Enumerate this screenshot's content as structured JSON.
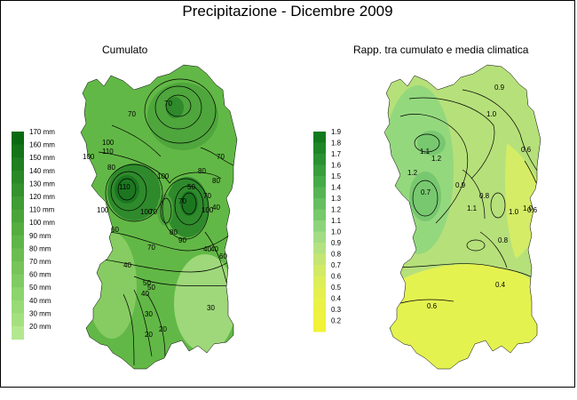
{
  "title": "Precipitazione - Dicembre 2009",
  "panels": [
    {
      "subtitle": "Cumulato",
      "legend": {
        "labels": [
          "170 mm",
          "160 mm",
          "150 mm",
          "140 mm",
          "130 mm",
          "120 mm",
          "110 mm",
          "100 mm",
          "90 mm",
          "80 mm",
          "70 mm",
          "60 mm",
          "50 mm",
          "40 mm",
          "30 mm",
          "20 mm"
        ],
        "colors": [
          "#0a6a12",
          "#157418",
          "#1f7e20",
          "#2a8826",
          "#35922e",
          "#409c34",
          "#4aa43a",
          "#55ad40",
          "#60b548",
          "#6bbd52",
          "#76c45a",
          "#80cc64",
          "#8cd46c",
          "#98da76",
          "#a4e080",
          "#b4e890"
        ]
      },
      "contour_labels": [
        "70",
        "70",
        "100",
        "110",
        "100",
        "80",
        "110",
        "70",
        "70",
        "80",
        "80",
        "100",
        "70",
        "100",
        "50",
        "100",
        "100",
        "80",
        "90",
        "70",
        "70",
        "40",
        "60",
        "50",
        "40",
        "40",
        "30",
        "20",
        "60",
        "30",
        "50",
        "20",
        "40",
        "40"
      ],
      "map_colors": {
        "base": "#62b846",
        "mid": "#4ea63c",
        "dark": "#2f8a2c",
        "darkest": "#1c7620",
        "light": "#86cc62",
        "lighter": "#9ed87a"
      }
    },
    {
      "subtitle": "Rapp. tra cumulato e media climatica",
      "legend": {
        "labels": [
          "1.9",
          "1.8",
          "1.7",
          "1.6",
          "1.5",
          "1.4",
          "1.3",
          "1.2",
          "1.1",
          "1.0",
          "0.9",
          "0.8",
          "0.7",
          "0.6",
          "0.5",
          "0.4",
          "0.3",
          "0.2"
        ],
        "colors": [
          "#127a1c",
          "#1e8626",
          "#2a9232",
          "#389e3c",
          "#46aa48",
          "#56b454",
          "#66be60",
          "#78c86c",
          "#8cd47c",
          "#a2dc84",
          "#b4e280",
          "#c4e674",
          "#d2ea66",
          "#dcee5a",
          "#e4f050",
          "#eaf248",
          "#eef240",
          "#f2f236"
        ]
      },
      "contour_labels": [
        "0.9",
        "1.0",
        "1.1",
        "1.2",
        "1.2",
        "0.9",
        "0.8",
        "1.1",
        "0.8",
        "1.0",
        "1.0",
        "0.7",
        "0.6",
        "0.6",
        "0.4",
        "0.6"
      ],
      "map_colors": {
        "base": "#b6e07a",
        "west": "#94d87e",
        "deep": "#78c870",
        "south": "#e4f250",
        "east": "#d4ec66"
      }
    }
  ]
}
